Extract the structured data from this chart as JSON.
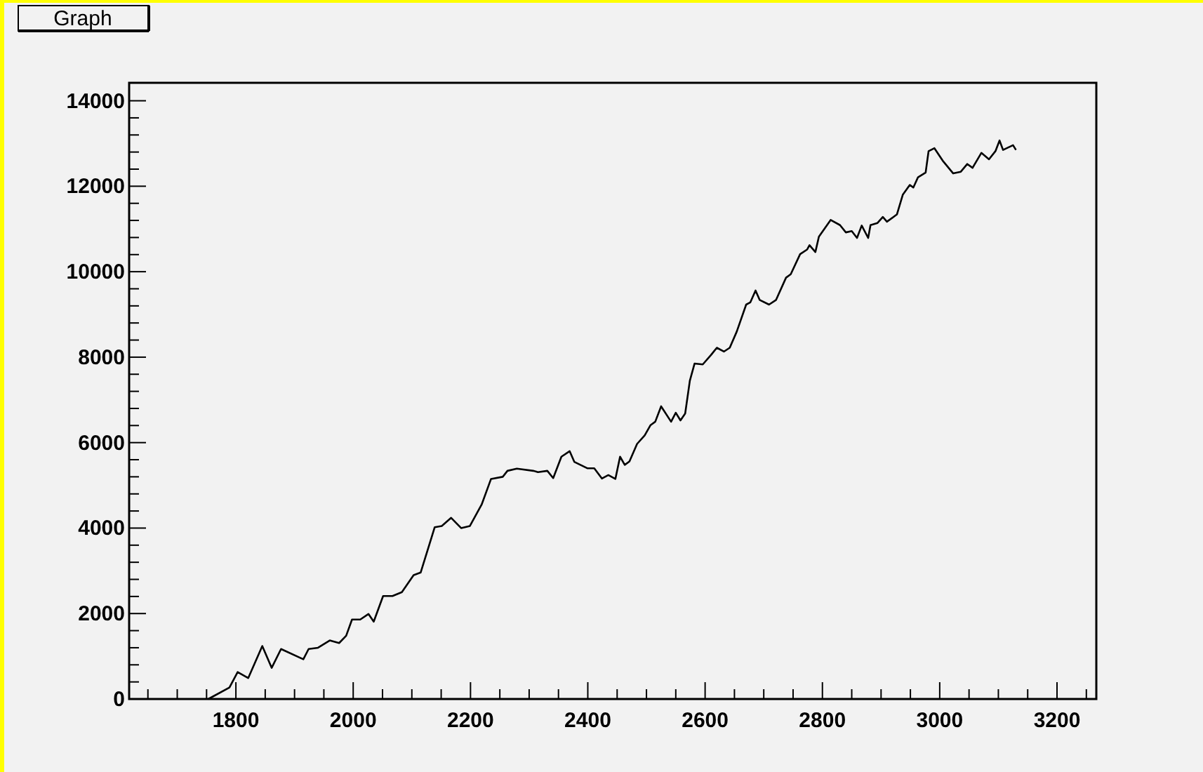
{
  "chart_data": {
    "type": "line",
    "title": "Graph",
    "xlim": [
      1618,
      3267
    ],
    "ylim": [
      0,
      14420
    ],
    "xticks": [
      {
        "value": 1650,
        "label": null
      },
      {
        "value": 1700,
        "label": null
      },
      {
        "value": 1750,
        "label": null
      },
      1800,
      {
        "value": 1850,
        "label": null
      },
      {
        "value": 1900,
        "label": null
      },
      {
        "value": 1950,
        "label": null
      },
      2000,
      {
        "value": 2050,
        "label": null
      },
      {
        "value": 2100,
        "label": null
      },
      {
        "value": 2150,
        "label": null
      },
      2200,
      {
        "value": 2250,
        "label": null
      },
      {
        "value": 2300,
        "label": null
      },
      {
        "value": 2350,
        "label": null
      },
      2400,
      {
        "value": 2450,
        "label": null
      },
      {
        "value": 2500,
        "label": null
      },
      {
        "value": 2550,
        "label": null
      },
      2600,
      {
        "value": 2650,
        "label": null
      },
      {
        "value": 2700,
        "label": null
      },
      {
        "value": 2750,
        "label": null
      },
      2800,
      {
        "value": 2850,
        "label": null
      },
      {
        "value": 2900,
        "label": null
      },
      {
        "value": 2950,
        "label": null
      },
      3000,
      {
        "value": 3050,
        "label": null
      },
      {
        "value": 3100,
        "label": null
      },
      {
        "value": 3150,
        "label": null
      },
      3200,
      {
        "value": 3250,
        "label": null
      }
    ],
    "yticks": [
      0,
      {
        "value": 400,
        "label": null
      },
      {
        "value": 800,
        "label": null
      },
      {
        "value": 1200,
        "label": null
      },
      {
        "value": 1600,
        "label": null
      },
      2000,
      {
        "value": 2400,
        "label": null
      },
      {
        "value": 2800,
        "label": null
      },
      {
        "value": 3200,
        "label": null
      },
      {
        "value": 3600,
        "label": null
      },
      4000,
      {
        "value": 4400,
        "label": null
      },
      {
        "value": 4800,
        "label": null
      },
      {
        "value": 5200,
        "label": null
      },
      {
        "value": 5600,
        "label": null
      },
      6000,
      {
        "value": 6400,
        "label": null
      },
      {
        "value": 6800,
        "label": null
      },
      {
        "value": 7200,
        "label": null
      },
      {
        "value": 7600,
        "label": null
      },
      8000,
      {
        "value": 8400,
        "label": null
      },
      {
        "value": 8800,
        "label": null
      },
      {
        "value": 9200,
        "label": null
      },
      {
        "value": 9600,
        "label": null
      },
      10000,
      {
        "value": 10400,
        "label": null
      },
      {
        "value": 10800,
        "label": null
      },
      {
        "value": 11200,
        "label": null
      },
      {
        "value": 11600,
        "label": null
      },
      12000,
      {
        "value": 12400,
        "label": null
      },
      {
        "value": 12800,
        "label": null
      },
      {
        "value": 13200,
        "label": null
      },
      {
        "value": 13600,
        "label": null
      },
      14000
    ],
    "grid": false,
    "marker": "none",
    "line_style": "solid",
    "series": [
      {
        "color": "#000000",
        "x": [
          1753,
          1789,
          1803,
          1821,
          1845,
          1861,
          1877,
          1915,
          1924,
          1940,
          1960,
          1976,
          1988,
          1998,
          2012,
          2026,
          2035,
          2051,
          2067,
          2083,
          2103,
          2115,
          2139,
          2151,
          2167,
          2184,
          2199,
          2219,
          2235,
          2255,
          2263,
          2279,
          2307,
          2315,
          2331,
          2341,
          2355,
          2369,
          2377,
          2399,
          2411,
          2424,
          2435,
          2447,
          2455,
          2463,
          2471,
          2484,
          2497,
          2507,
          2515,
          2525,
          2542,
          2550,
          2558,
          2566,
          2574,
          2582,
          2596,
          2610,
          2620,
          2632,
          2642,
          2654,
          2670,
          2677,
          2686,
          2693,
          2709,
          2721,
          2738,
          2746,
          2762,
          2774,
          2778,
          2788,
          2794,
          2814,
          2830,
          2840,
          2850,
          2859,
          2867,
          2878,
          2882,
          2894,
          2903,
          2910,
          2927,
          2937,
          2949,
          2955,
          2963,
          2976,
          2981,
          2991,
          3005,
          3023,
          3036,
          3047,
          3056,
          3071,
          3084,
          3095,
          3102,
          3108,
          3125,
          3130
        ],
        "values": [
          0,
          270,
          630,
          490,
          1240,
          730,
          1170,
          930,
          1170,
          1200,
          1370,
          1310,
          1480,
          1860,
          1860,
          1990,
          1810,
          2410,
          2410,
          2500,
          2900,
          2960,
          4020,
          4050,
          4240,
          4000,
          4050,
          4550,
          5150,
          5200,
          5340,
          5390,
          5340,
          5310,
          5340,
          5170,
          5670,
          5800,
          5550,
          5400,
          5400,
          5160,
          5240,
          5150,
          5670,
          5480,
          5560,
          5970,
          6170,
          6410,
          6490,
          6850,
          6490,
          6700,
          6520,
          6680,
          7450,
          7850,
          7830,
          8050,
          8220,
          8130,
          8220,
          8600,
          9230,
          9280,
          9560,
          9340,
          9230,
          9340,
          9860,
          9940,
          10410,
          10520,
          10620,
          10460,
          10820,
          11210,
          11090,
          10920,
          10950,
          10790,
          11080,
          10790,
          11090,
          11140,
          11280,
          11170,
          11340,
          11800,
          12030,
          11970,
          12210,
          12320,
          12820,
          12890,
          12600,
          12300,
          12340,
          12520,
          12430,
          12780,
          12630,
          12820,
          13070,
          12850,
          12960,
          12850
        ]
      }
    ]
  }
}
